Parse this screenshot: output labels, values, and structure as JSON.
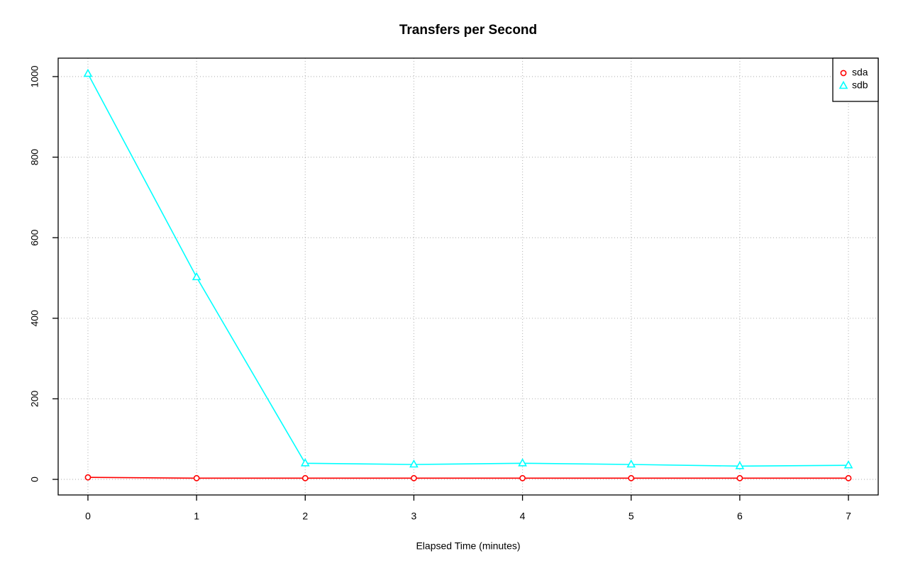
{
  "chart_data": {
    "type": "line",
    "title": "Transfers per Second",
    "x_label": "Elapsed Time (minutes)",
    "x": [
      0,
      1,
      2,
      3,
      4,
      5,
      6,
      7
    ],
    "series": [
      {
        "name": "sda",
        "color": "#ff0000",
        "marker": "circle",
        "values": [
          5,
          3,
          3,
          3,
          3,
          3,
          3,
          3
        ]
      },
      {
        "name": "sdb",
        "color": "#00ffff",
        "marker": "triangle",
        "values": [
          1007,
          502,
          40,
          37,
          40,
          37,
          33,
          35
        ]
      }
    ],
    "xlim": [
      -0.274,
      7.274
    ],
    "ylim": [
      -38.7,
      1045.8
    ],
    "xticks": [
      0,
      1,
      2,
      3,
      4,
      5,
      6,
      7
    ],
    "yticks": [
      0,
      200,
      400,
      600,
      800,
      1000
    ],
    "grid": true,
    "legend": "top-right"
  }
}
